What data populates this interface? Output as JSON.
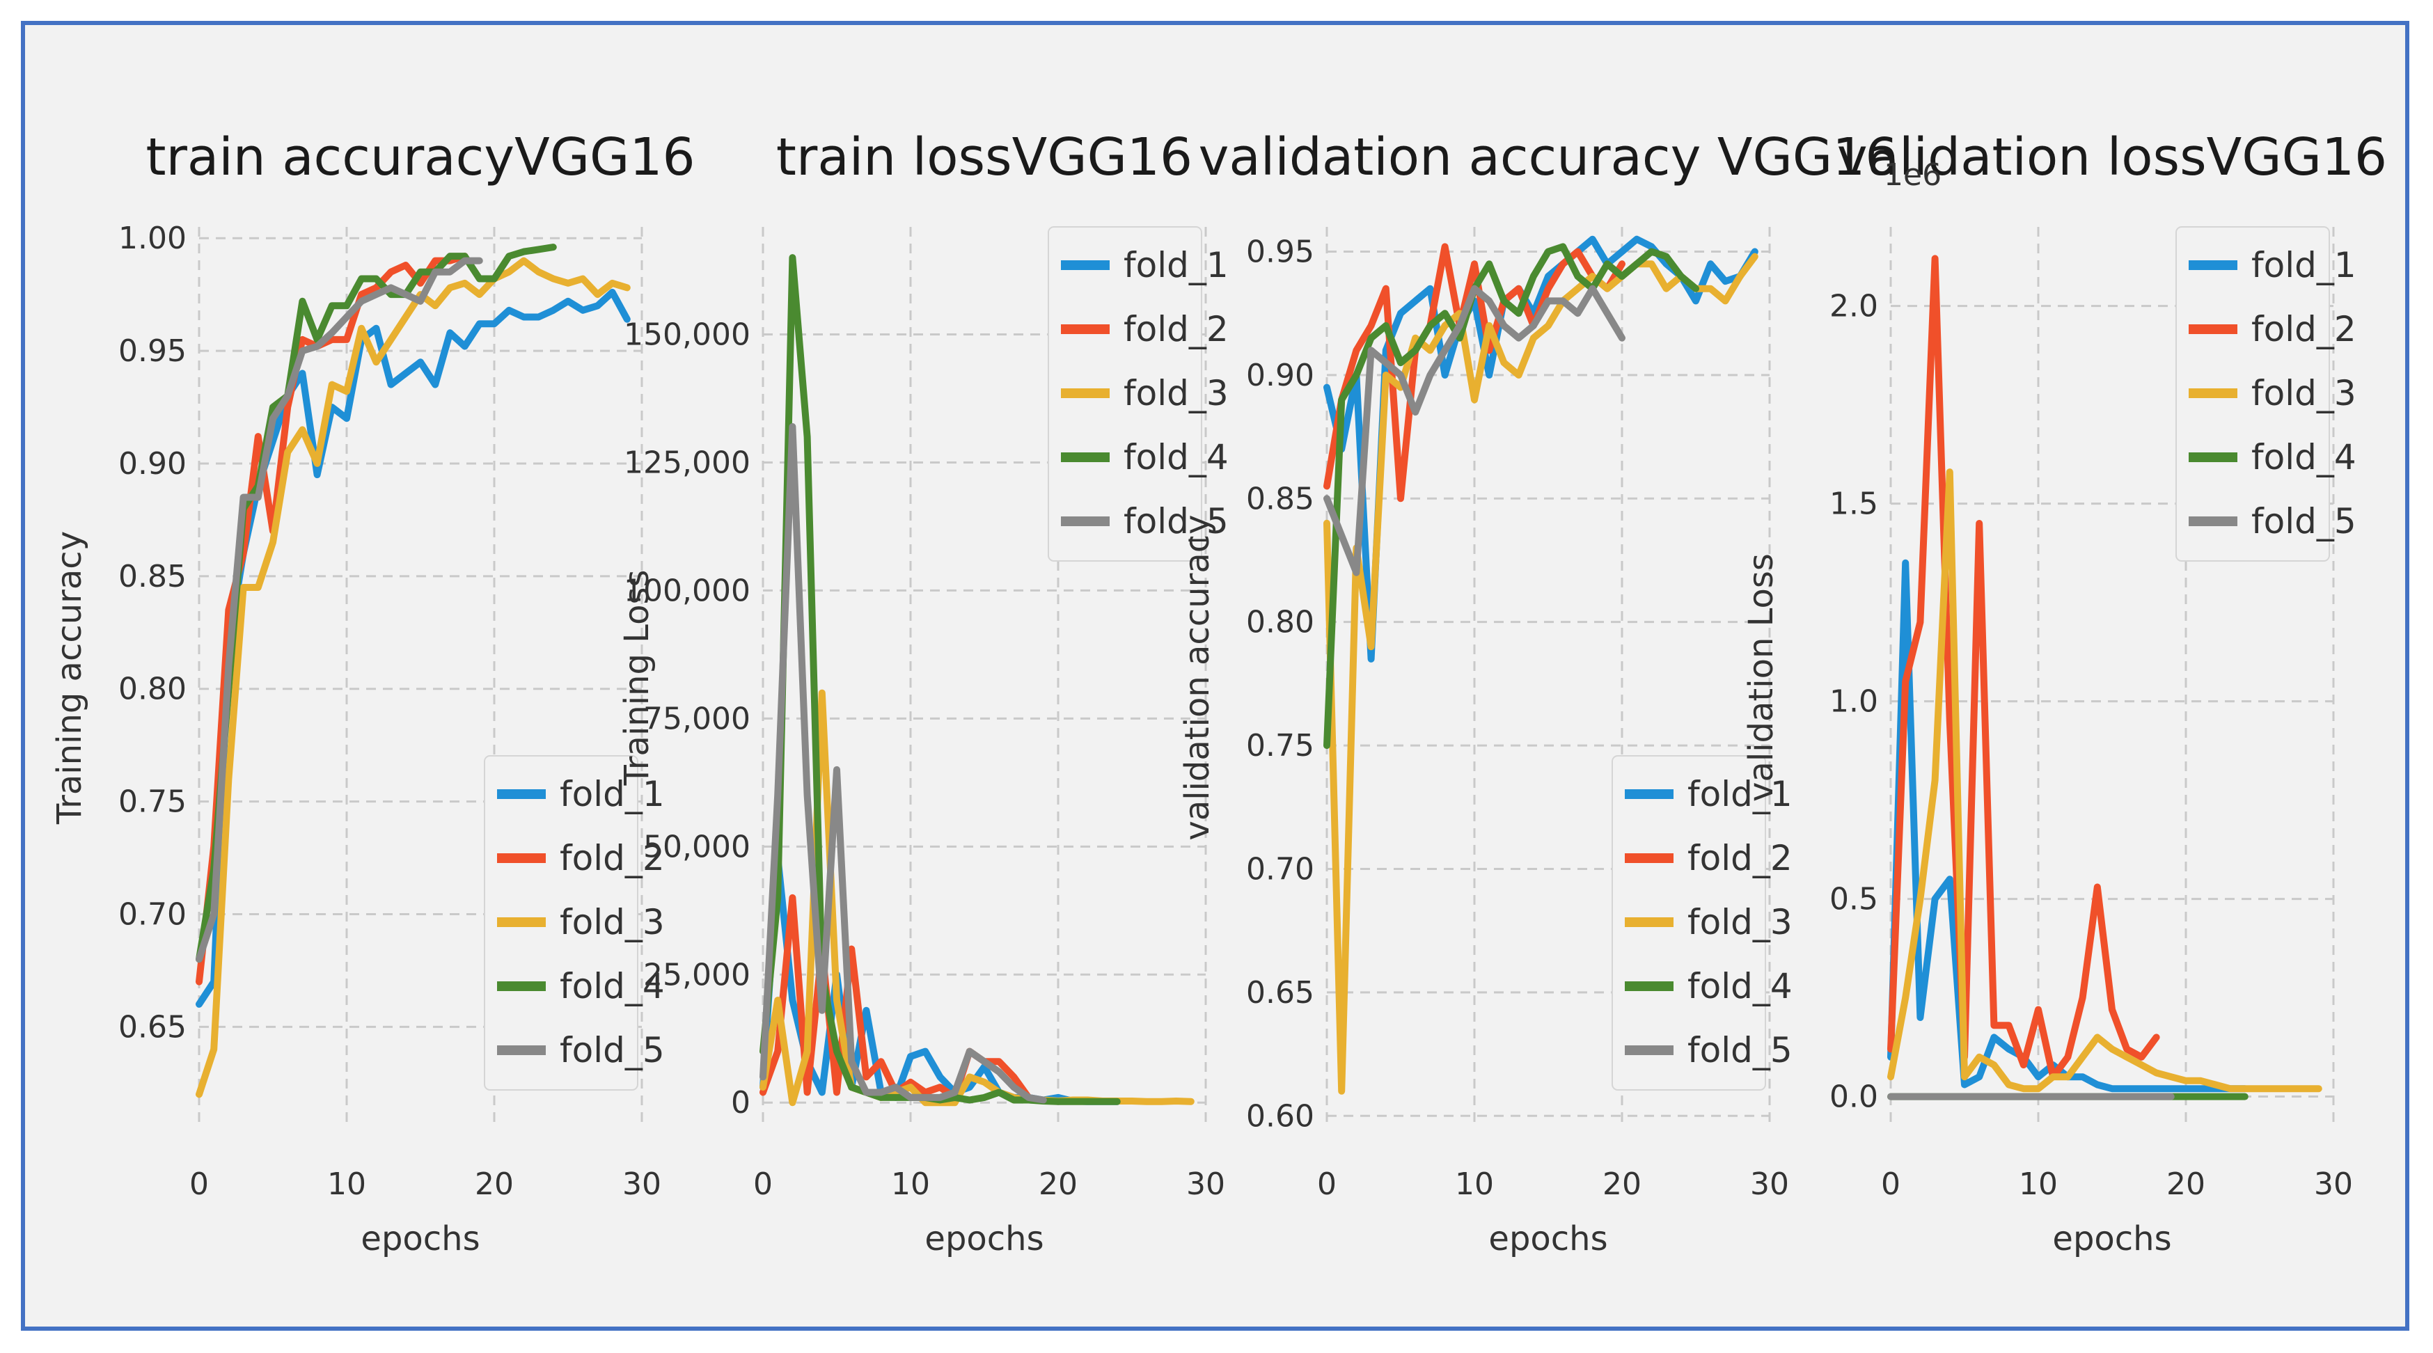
{
  "colors": {
    "fold_1": "#1f8fd6",
    "fold_2": "#f0502a",
    "fold_3": "#e8b030",
    "fold_4": "#4a8a30",
    "fold_5": "#888888",
    "frame": "#4472c4",
    "panel": "#f2f2f2"
  },
  "legend_labels": [
    "fold_1",
    "fold_2",
    "fold_3",
    "fold_4",
    "fold_5"
  ],
  "chart_data": [
    {
      "type": "line",
      "id": "p1",
      "title": "train accuracyVGG16",
      "xlabel": "epochs",
      "ylabel": "Training accuracy",
      "xlim": [
        0,
        30
      ],
      "ylim": [
        0.605,
        1.005
      ],
      "xticks": [
        0,
        10,
        20,
        30
      ],
      "xtick_labels": [
        "0",
        "10",
        "20",
        "30"
      ],
      "yticks": [
        0.65,
        0.7,
        0.75,
        0.8,
        0.85,
        0.9,
        0.95,
        1.0
      ],
      "ytick_labels": [
        "0.65",
        "0.70",
        "0.75",
        "0.80",
        "0.85",
        "0.90",
        "0.95",
        "1.00"
      ],
      "legend_position": "lower-right",
      "series": [
        {
          "name": "fold_1",
          "values": [
            0.66,
            0.67,
            0.82,
            0.86,
            0.89,
            0.91,
            0.93,
            0.94,
            0.895,
            0.925,
            0.92,
            0.955,
            0.96,
            0.935,
            0.94,
            0.945,
            0.935,
            0.958,
            0.952,
            0.962,
            0.962,
            0.968,
            0.965,
            0.965,
            0.968,
            0.972,
            0.968,
            0.97,
            0.976,
            0.964
          ]
        },
        {
          "name": "fold_2",
          "values": [
            0.67,
            0.73,
            0.835,
            0.86,
            0.912,
            0.87,
            0.925,
            0.955,
            0.952,
            0.955,
            0.955,
            0.975,
            0.978,
            0.985,
            0.988,
            0.98,
            0.99,
            0.99,
            0.992
          ]
        },
        {
          "name": "fold_3",
          "values": [
            0.62,
            0.64,
            0.76,
            0.845,
            0.845,
            0.865,
            0.905,
            0.915,
            0.9,
            0.935,
            0.932,
            0.96,
            0.945,
            0.955,
            0.965,
            0.975,
            0.97,
            0.978,
            0.98,
            0.975,
            0.982,
            0.985,
            0.99,
            0.985,
            0.982,
            0.98,
            0.982,
            0.975,
            0.98,
            0.978
          ]
        },
        {
          "name": "fold_4",
          "values": [
            0.68,
            0.72,
            0.8,
            0.88,
            0.89,
            0.925,
            0.93,
            0.972,
            0.955,
            0.97,
            0.97,
            0.982,
            0.982,
            0.975,
            0.975,
            0.985,
            0.985,
            0.992,
            0.992,
            0.982,
            0.982,
            0.992,
            0.994,
            0.995,
            0.996
          ]
        },
        {
          "name": "fold_5",
          "values": [
            0.68,
            0.7,
            0.81,
            0.885,
            0.885,
            0.92,
            0.93,
            0.95,
            0.952,
            0.958,
            0.965,
            0.972,
            0.975,
            0.978,
            0.975,
            0.972,
            0.985,
            0.985,
            0.99,
            0.99
          ]
        }
      ]
    },
    {
      "type": "line",
      "id": "p2",
      "title": "train lossVGG16",
      "xlabel": "epochs",
      "ylabel": "Training Loss",
      "xlim": [
        0,
        30
      ],
      "ylim": [
        -5000,
        171000
      ],
      "xticks": [
        0,
        10,
        20,
        30
      ],
      "xtick_labels": [
        "0",
        "10",
        "20",
        "30"
      ],
      "yticks": [
        0,
        25000,
        50000,
        75000,
        100000,
        125000,
        150000
      ],
      "ytick_labels": [
        "0",
        "25,000",
        "50,000",
        "75,000",
        "100,000",
        "125,000",
        "150,000"
      ],
      "legend_position": "upper-right",
      "series": [
        {
          "name": "fold_1",
          "values": [
            3000,
            48000,
            20000,
            8000,
            2000,
            25000,
            3000,
            18000,
            2000,
            1000,
            9000,
            10000,
            5000,
            2000,
            3000,
            7000,
            2000,
            1000,
            1000,
            500,
            1000,
            300,
            200,
            200,
            200
          ]
        },
        {
          "name": "fold_2",
          "values": [
            2000,
            10000,
            40000,
            2000,
            30000,
            2000,
            30000,
            5000,
            8000,
            2000,
            4000,
            2000,
            3000,
            1000,
            10000,
            8000,
            8000,
            5000,
            1000
          ]
        },
        {
          "name": "fold_3",
          "values": [
            3000,
            20000,
            0,
            10000,
            80000,
            20000,
            3000,
            2000,
            1000,
            2000,
            3000,
            0,
            0,
            0,
            5000,
            4000,
            2000,
            1000,
            500,
            500,
            300,
            500,
            500,
            300,
            300,
            300,
            200,
            200,
            300,
            200
          ]
        },
        {
          "name": "fold_4",
          "values": [
            10000,
            40000,
            165000,
            130000,
            25000,
            10000,
            3000,
            2000,
            1000,
            1000,
            1000,
            1000,
            500,
            1000,
            500,
            1000,
            2000,
            500,
            500,
            300,
            200,
            200,
            200,
            200,
            200
          ]
        },
        {
          "name": "fold_5",
          "values": [
            5000,
            60000,
            132000,
            60000,
            18000,
            65000,
            8000,
            2000,
            2000,
            3000,
            1000,
            1000,
            1000,
            2000,
            10000,
            8000,
            6000,
            3000,
            1000,
            500
          ]
        }
      ]
    },
    {
      "type": "line",
      "id": "p3",
      "title": "validation accuracy VGG16",
      "xlabel": "epochs",
      "ylabel": "validation accuracy",
      "xlim": [
        0,
        30
      ],
      "ylim": [
        0.595,
        0.96
      ],
      "xticks": [
        0,
        10,
        20,
        30
      ],
      "xtick_labels": [
        "0",
        "10",
        "20",
        "30"
      ],
      "yticks": [
        0.6,
        0.65,
        0.7,
        0.75,
        0.8,
        0.85,
        0.9,
        0.95
      ],
      "ytick_labels": [
        "0.60",
        "0.65",
        "0.70",
        "0.75",
        "0.80",
        "0.85",
        "0.90",
        "0.95"
      ],
      "legend_position": "lower-right",
      "series": [
        {
          "name": "fold_1",
          "values": [
            0.895,
            0.87,
            0.9,
            0.785,
            0.91,
            0.925,
            0.93,
            0.935,
            0.9,
            0.92,
            0.93,
            0.9,
            0.93,
            0.935,
            0.925,
            0.94,
            0.945,
            0.95,
            0.955,
            0.945,
            0.95,
            0.955,
            0.952,
            0.945,
            0.94,
            0.93,
            0.945,
            0.938,
            0.94,
            0.95
          ]
        },
        {
          "name": "fold_2",
          "values": [
            0.855,
            0.89,
            0.91,
            0.92,
            0.935,
            0.85,
            0.91,
            0.92,
            0.952,
            0.92,
            0.945,
            0.91,
            0.93,
            0.935,
            0.92,
            0.935,
            0.945,
            0.95,
            0.94,
            0.935,
            0.945
          ]
        },
        {
          "name": "fold_3",
          "values": [
            0.84,
            0.61,
            0.83,
            0.79,
            0.9,
            0.895,
            0.915,
            0.91,
            0.92,
            0.925,
            0.89,
            0.92,
            0.905,
            0.9,
            0.915,
            0.92,
            0.93,
            0.935,
            0.94,
            0.935,
            0.94,
            0.945,
            0.945,
            0.935,
            0.94,
            0.935,
            0.935,
            0.93,
            0.94,
            0.948
          ]
        },
        {
          "name": "fold_4",
          "values": [
            0.75,
            0.89,
            0.9,
            0.915,
            0.92,
            0.905,
            0.91,
            0.92,
            0.925,
            0.915,
            0.935,
            0.945,
            0.93,
            0.925,
            0.94,
            0.95,
            0.952,
            0.94,
            0.935,
            0.945,
            0.94,
            0.945,
            0.95,
            0.948,
            0.94,
            0.935
          ]
        },
        {
          "name": "fold_5",
          "values": [
            0.85,
            0.835,
            0.82,
            0.91,
            0.905,
            0.9,
            0.885,
            0.9,
            0.91,
            0.92,
            0.935,
            0.93,
            0.92,
            0.915,
            0.92,
            0.93,
            0.93,
            0.925,
            0.935,
            0.925,
            0.915
          ]
        }
      ]
    },
    {
      "type": "line",
      "id": "p4",
      "title": "validation lossVGG16",
      "offset_label": "1e6",
      "xlabel": "epochs",
      "ylabel": "validation Loss",
      "xlim": [
        0,
        30
      ],
      "ylim": [
        -0.08,
        2.2
      ],
      "xticks": [
        0,
        10,
        20,
        30
      ],
      "xtick_labels": [
        "0",
        "10",
        "20",
        "30"
      ],
      "yticks": [
        0.0,
        0.5,
        1.0,
        1.5,
        2.0
      ],
      "ytick_labels": [
        "0.0",
        "0.5",
        "1.0",
        "1.5",
        "2.0"
      ],
      "legend_position": "upper-right",
      "series": [
        {
          "name": "fold_1",
          "values": [
            0.1,
            1.35,
            0.2,
            0.5,
            0.55,
            0.03,
            0.05,
            0.15,
            0.12,
            0.1,
            0.05,
            0.08,
            0.05,
            0.05,
            0.03,
            0.02,
            0.02,
            0.02,
            0.02,
            0.02,
            0.02,
            0.02,
            0.02,
            0.02,
            0.02
          ]
        },
        {
          "name": "fold_2",
          "values": [
            0.12,
            1.05,
            1.2,
            2.12,
            0.95,
            0.1,
            1.45,
            0.18,
            0.18,
            0.08,
            0.22,
            0.05,
            0.1,
            0.25,
            0.53,
            0.22,
            0.12,
            0.1,
            0.15
          ]
        },
        {
          "name": "fold_3",
          "values": [
            0.05,
            0.25,
            0.5,
            0.8,
            1.58,
            0.05,
            0.1,
            0.08,
            0.03,
            0.02,
            0.02,
            0.05,
            0.05,
            0.1,
            0.15,
            0.12,
            0.1,
            0.08,
            0.06,
            0.05,
            0.04,
            0.04,
            0.03,
            0.02,
            0.02,
            0.02,
            0.02,
            0.02,
            0.02,
            0.02
          ]
        },
        {
          "name": "fold_4",
          "values": [
            0,
            0,
            0,
            0,
            0,
            0,
            0,
            0,
            0,
            0,
            0,
            0,
            0,
            0,
            0,
            0,
            0,
            0,
            0,
            0,
            0,
            0,
            0,
            0,
            0
          ]
        },
        {
          "name": "fold_5",
          "values": [
            0,
            0,
            0,
            0,
            0,
            0,
            0,
            0,
            0,
            0,
            0,
            0,
            0,
            0,
            0,
            0,
            0,
            0,
            0,
            0
          ]
        }
      ]
    }
  ]
}
